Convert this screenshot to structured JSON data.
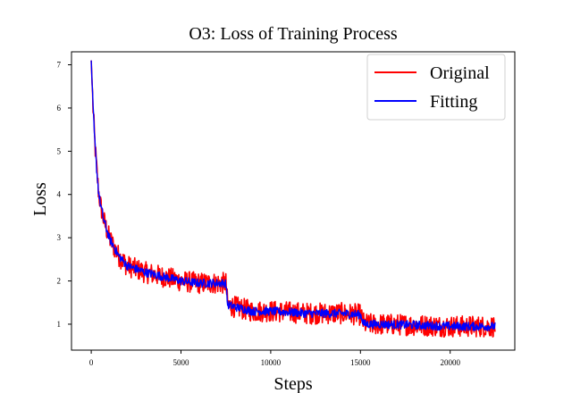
{
  "chart_data": {
    "type": "line",
    "title": "O3: Loss of Training Process",
    "xlabel": "Steps",
    "ylabel": "Loss",
    "xlim": [
      -1100,
      23600
    ],
    "ylim": [
      0.4,
      7.3
    ],
    "xticks": [
      0,
      5000,
      10000,
      15000,
      20000
    ],
    "xtick_labels": [
      "0",
      "5000",
      "10000",
      "15000",
      "20000"
    ],
    "yticks": [
      1,
      2,
      3,
      4,
      5,
      6,
      7
    ],
    "ytick_labels": [
      "1",
      "2",
      "3",
      "4",
      "5",
      "6",
      "7"
    ],
    "grid": false,
    "legend_position": "top-right",
    "series": [
      {
        "name": "Original",
        "color": "#ff0000",
        "noise_band": 0.25,
        "x": [
          0,
          100,
          200,
          300,
          400,
          500,
          700,
          1000,
          1500,
          2000,
          3000,
          4000,
          5000,
          6000,
          7000,
          7500,
          7600,
          8000,
          9000,
          10000,
          11000,
          12000,
          13000,
          14000,
          15000,
          15200,
          16000,
          18000,
          20000,
          22000,
          22500
        ],
        "y": [
          7.1,
          6.0,
          5.2,
          4.6,
          4.1,
          3.8,
          3.4,
          3.0,
          2.6,
          2.35,
          2.2,
          2.1,
          2.0,
          1.95,
          1.95,
          1.95,
          1.45,
          1.4,
          1.3,
          1.3,
          1.28,
          1.25,
          1.25,
          1.25,
          1.22,
          1.0,
          1.0,
          0.98,
          0.95,
          0.95,
          0.95
        ]
      },
      {
        "name": "Fitting",
        "color": "#0000ff",
        "noise_band": 0.1,
        "x": [
          0,
          100,
          200,
          300,
          400,
          500,
          700,
          1000,
          1500,
          2000,
          3000,
          4000,
          5000,
          6000,
          7000,
          7500,
          7600,
          8000,
          9000,
          10000,
          11000,
          12000,
          13000,
          14000,
          15000,
          15200,
          16000,
          18000,
          20000,
          22000,
          22500
        ],
        "y": [
          7.1,
          6.0,
          5.2,
          4.6,
          4.1,
          3.8,
          3.4,
          3.0,
          2.6,
          2.35,
          2.2,
          2.1,
          2.0,
          1.95,
          1.95,
          1.95,
          1.45,
          1.4,
          1.3,
          1.3,
          1.28,
          1.25,
          1.25,
          1.25,
          1.22,
          1.0,
          1.0,
          0.98,
          0.95,
          0.95,
          0.95
        ]
      }
    ]
  }
}
